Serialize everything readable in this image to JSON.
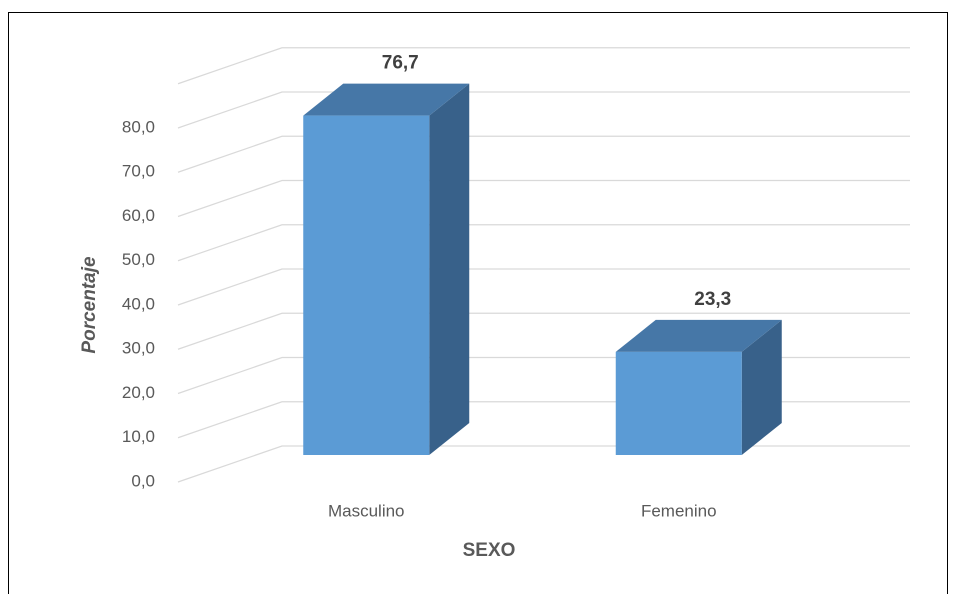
{
  "chart_data": {
    "type": "bar3d",
    "categories": [
      "Masculino",
      "Femenino"
    ],
    "values": [
      76.7,
      23.3
    ],
    "value_labels": [
      "76,7",
      "23,3"
    ],
    "color": "#5b9bd5",
    "xlabel": "SEXO",
    "ylabel": "Porcentaje",
    "ylim": [
      0,
      90
    ],
    "yticks": [
      {
        "value": 0,
        "label": "0,0"
      },
      {
        "value": 10,
        "label": "10,0"
      },
      {
        "value": 20,
        "label": "20,0"
      },
      {
        "value": 30,
        "label": "30,0"
      },
      {
        "value": 40,
        "label": "40,0"
      },
      {
        "value": 50,
        "label": "50,0"
      },
      {
        "value": 60,
        "label": "60,0"
      },
      {
        "value": 70,
        "label": "70,0"
      },
      {
        "value": 80,
        "label": "80,0"
      }
    ],
    "grid": true
  }
}
